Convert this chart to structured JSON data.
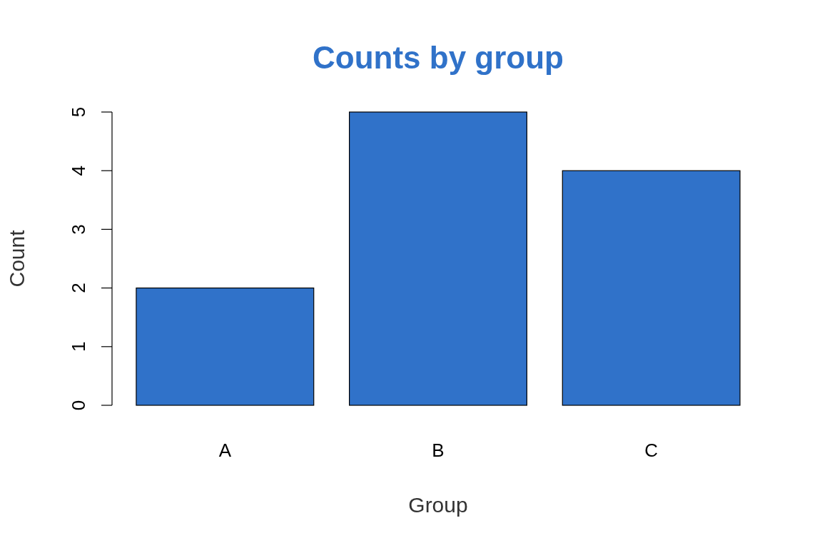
{
  "chart_data": {
    "type": "bar",
    "title": "Counts by group",
    "xlabel": "Group",
    "ylabel": "Count",
    "categories": [
      "A",
      "B",
      "C"
    ],
    "values": [
      2,
      5,
      4
    ],
    "color": "#3072c9",
    "ylim": [
      0,
      5
    ],
    "yticks": [
      0,
      1,
      2,
      3,
      4,
      5
    ],
    "grid": false
  }
}
